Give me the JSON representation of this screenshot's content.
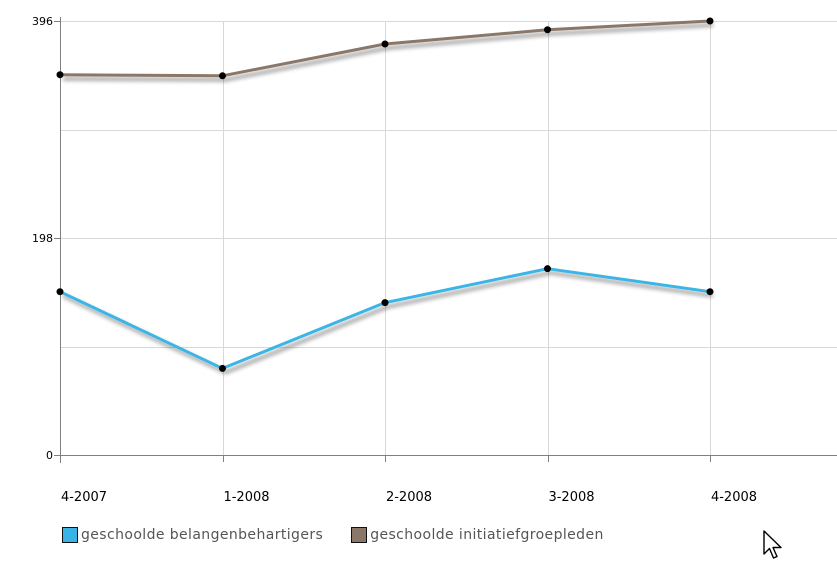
{
  "chart_data": {
    "type": "line",
    "categories": [
      "4-2007",
      "1-2008",
      "2-2008",
      "3-2008",
      "4-2008"
    ],
    "series": [
      {
        "name": "geschoolde belangenbehartigers",
        "values": [
          149,
          79,
          139,
          170,
          149
        ],
        "color": "#3ab4e6"
      },
      {
        "name": "geschoolde initiatiefgroepleden",
        "values": [
          347,
          346,
          375,
          388,
          396
        ],
        "color": "#8a7768"
      }
    ],
    "y_ticks": [
      "0",
      "198",
      "396"
    ],
    "ylim": [
      0,
      396
    ],
    "title": "",
    "xlabel": "",
    "ylabel": "",
    "grid": true,
    "legend_position": "bottom"
  },
  "cursor": {
    "icon": "mouse-pointer-icon"
  }
}
